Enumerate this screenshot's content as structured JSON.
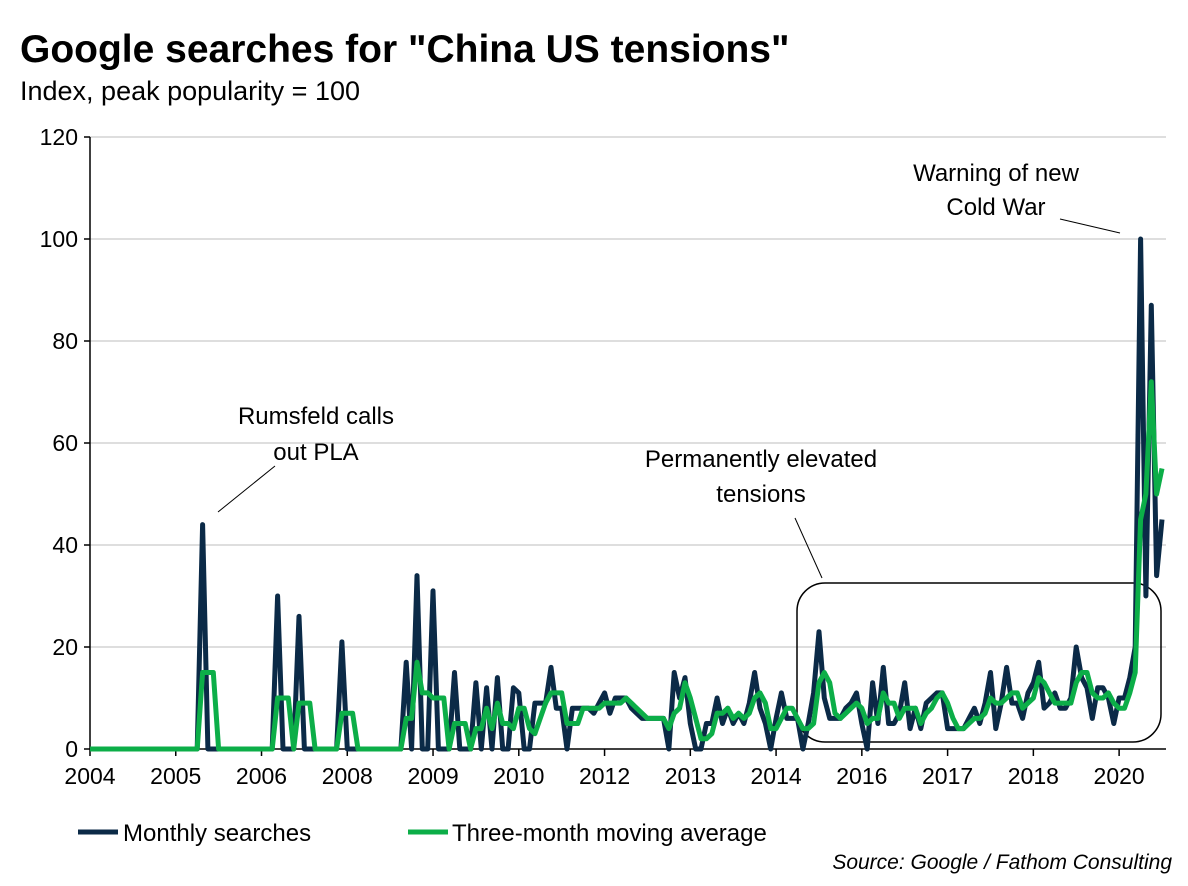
{
  "chart_data": {
    "type": "line",
    "title": "Google searches for \"China US tensions\"",
    "subtitle": "Index, peak popularity = 100",
    "source": "Source: Google / Fathom Consulting",
    "x_start": "2004-01",
    "x_frequency": "monthly",
    "ylim": [
      0,
      120
    ],
    "yticks": [
      0,
      20,
      40,
      60,
      80,
      100,
      120
    ],
    "grid": true,
    "xtick_labels": [
      "2004",
      "2005",
      "2006",
      "2008",
      "2009",
      "2010",
      "2012",
      "2013",
      "2014",
      "2016",
      "2017",
      "2018",
      "2020"
    ],
    "xtick_every_months": 16,
    "legend_position": "bottom",
    "colors": {
      "monthly": "#0b2a47",
      "ma": "#0cae48"
    },
    "series": [
      {
        "name": "Monthly searches",
        "values": [
          0,
          0,
          0,
          0,
          0,
          0,
          0,
          0,
          0,
          0,
          0,
          0,
          0,
          0,
          0,
          0,
          0,
          0,
          0,
          0,
          0,
          44,
          0,
          0,
          0,
          0,
          0,
          0,
          0,
          0,
          0,
          0,
          0,
          0,
          0,
          30,
          0,
          0,
          0,
          26,
          0,
          0,
          0,
          0,
          0,
          0,
          0,
          21,
          0,
          0,
          0,
          0,
          0,
          0,
          0,
          0,
          0,
          0,
          0,
          17,
          0,
          34,
          0,
          0,
          31,
          0,
          0,
          0,
          15,
          0,
          0,
          0,
          13,
          0,
          12,
          0,
          14,
          0,
          0,
          12,
          11,
          0,
          0,
          9,
          9,
          9,
          16,
          8,
          8,
          0,
          8,
          8,
          8,
          8,
          7,
          9,
          11,
          7,
          10,
          10,
          10,
          8,
          7,
          6,
          6,
          6,
          6,
          6,
          0,
          15,
          10,
          14,
          5,
          0,
          0,
          5,
          5,
          10,
          5,
          8,
          5,
          7,
          5,
          9,
          15,
          8,
          5,
          0,
          6,
          11,
          6,
          6,
          6,
          0,
          5,
          11,
          23,
          10,
          6,
          6,
          6,
          8,
          9,
          11,
          5,
          0,
          13,
          5,
          16,
          5,
          5,
          7,
          13,
          4,
          8,
          4,
          9,
          10,
          11,
          11,
          4,
          4,
          4,
          4,
          6,
          8,
          5,
          9,
          15,
          4,
          9,
          16,
          9,
          9,
          6,
          11,
          13,
          17,
          8,
          9,
          11,
          8,
          8,
          10,
          20,
          14,
          12,
          6,
          12,
          12,
          10,
          5,
          10,
          10,
          14,
          20,
          100,
          30,
          87,
          34,
          45
        ]
      },
      {
        "name": "Three-month moving average",
        "values": [
          0,
          0,
          0,
          0,
          0,
          0,
          0,
          0,
          0,
          0,
          0,
          0,
          0,
          0,
          0,
          0,
          0,
          0,
          0,
          0,
          0,
          15,
          15,
          15,
          0,
          0,
          0,
          0,
          0,
          0,
          0,
          0,
          0,
          0,
          0,
          10,
          10,
          10,
          0,
          9,
          9,
          9,
          0,
          0,
          0,
          0,
          0,
          7,
          7,
          7,
          0,
          0,
          0,
          0,
          0,
          0,
          0,
          0,
          0,
          6,
          6,
          17,
          11,
          11,
          10,
          10,
          10,
          0,
          5,
          5,
          5,
          0,
          4,
          4,
          8,
          4,
          9,
          5,
          5,
          4,
          8,
          8,
          4,
          3,
          6,
          9,
          11,
          11,
          11,
          5,
          5,
          5,
          8,
          8,
          8,
          8,
          9,
          9,
          9,
          9,
          10,
          9,
          8,
          7,
          6,
          6,
          6,
          6,
          4,
          7,
          8,
          13,
          10,
          6,
          2,
          2,
          3,
          7,
          7,
          8,
          6,
          7,
          6,
          7,
          10,
          11,
          9,
          4,
          4,
          6,
          8,
          8,
          6,
          4,
          4,
          5,
          13,
          15,
          13,
          7,
          6,
          7,
          8,
          9,
          8,
          5,
          6,
          6,
          11,
          9,
          9,
          6,
          8,
          8,
          8,
          5,
          7,
          8,
          10,
          11,
          9,
          6,
          4,
          4,
          5,
          6,
          6,
          7,
          10,
          9,
          9,
          10,
          11,
          11,
          8,
          9,
          10,
          14,
          13,
          11,
          9,
          9,
          9,
          9,
          13,
          15,
          15,
          11,
          10,
          10,
          11,
          9,
          8,
          8,
          11,
          15,
          45,
          50,
          72,
          50,
          55
        ]
      }
    ],
    "annotations": [
      {
        "lines": [
          "Rumsfeld calls",
          "out PLA"
        ]
      },
      {
        "lines": [
          "Permanently elevated",
          "tensions"
        ]
      },
      {
        "lines": [
          "Warning of new",
          "Cold War"
        ]
      }
    ]
  }
}
